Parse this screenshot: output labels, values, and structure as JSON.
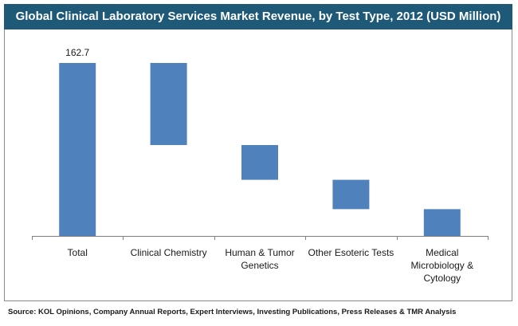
{
  "source": "Source: KOL Opinions, Company Annual Reports, Expert Interviews, Investing Publications, Press Releases & TMR Analysis",
  "colors": {
    "bar": "#4f81bd",
    "title_bg": "#1e5a78",
    "axis": "#7f7f7f"
  },
  "chart_data": {
    "type": "bar",
    "subtype": "waterfall",
    "title": "Global Clinical Laboratory Services Market Revenue, by Test Type, 2012 (USD Million)",
    "categories": [
      "Total",
      "Clinical Chemistry",
      "Human & Tumor Genetics",
      "Other Esoteric Tests",
      "Medical Microbiology & Cytology"
    ],
    "category_label_lines": [
      [
        "Total"
      ],
      [
        "Clinical Chemistry"
      ],
      [
        "Human & Tumor",
        "Genetics"
      ],
      [
        "Other Esoteric Tests"
      ],
      [
        "Medical",
        "Microbiology &",
        "Cytology"
      ]
    ],
    "segments": [
      {
        "category": "Total",
        "start": 0,
        "end": 162.7
      },
      {
        "category": "Clinical Chemistry",
        "start": 85.5,
        "end": 162.7
      },
      {
        "category": "Human & Tumor Genetics",
        "start": 52.8,
        "end": 85.5
      },
      {
        "category": "Other Esoteric Tests",
        "start": 25.2,
        "end": 52.8
      },
      {
        "category": "Medical Microbiology & Cytology",
        "start": 0,
        "end": 25.2
      }
    ],
    "values": [
      162.7,
      77.2,
      32.7,
      27.6,
      25.2
    ],
    "data_labels": [
      {
        "category": "Total",
        "text": "162.7"
      }
    ],
    "ylim": [
      0,
      162.7
    ],
    "grid": false,
    "legend": "none"
  }
}
